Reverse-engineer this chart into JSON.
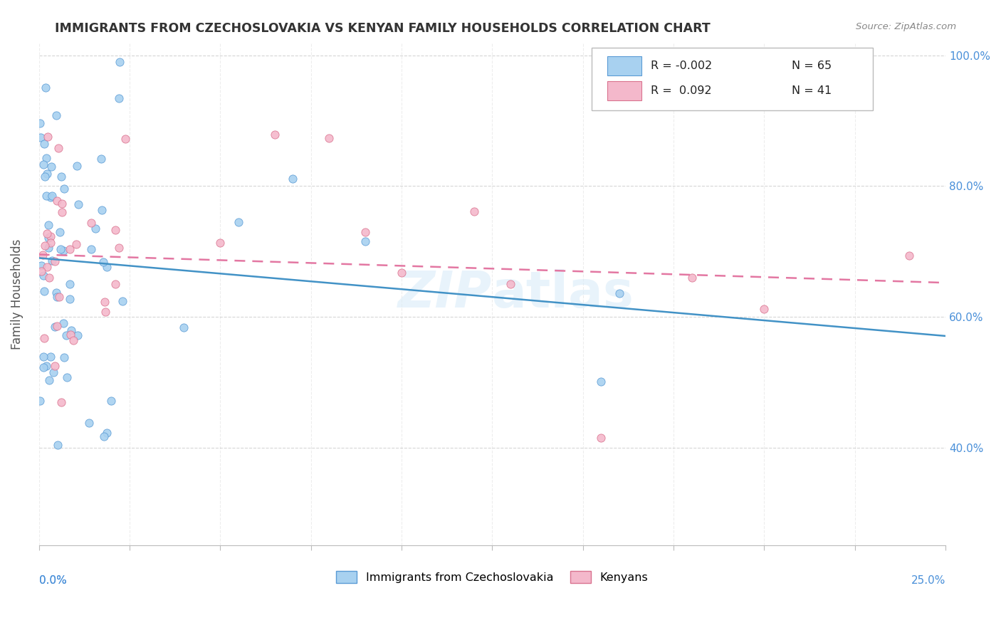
{
  "title": "IMMIGRANTS FROM CZECHOSLOVAKIA VS KENYAN FAMILY HOUSEHOLDS CORRELATION CHART",
  "source": "Source: ZipAtlas.com",
  "ylabel": "Family Households",
  "blue_color_face": "#a8d1f0",
  "blue_color_edge": "#5b9bd5",
  "pink_color_face": "#f4b8cb",
  "pink_color_edge": "#d9738f",
  "blue_line_color": "#4292c6",
  "pink_line_color": "#e377a2",
  "blue_r": -0.002,
  "blue_n": 65,
  "pink_r": 0.092,
  "pink_n": 41,
  "xmin": 0.0,
  "xmax": 0.25,
  "ymin": 0.25,
  "ymax": 1.02,
  "right_yticks": [
    0.4,
    0.6,
    0.8,
    1.0
  ],
  "right_yticklabels": [
    "40.0%",
    "60.0%",
    "80.0%",
    "100.0%"
  ],
  "legend_r1": "R = -0.002",
  "legend_n1": "N = 65",
  "legend_r2": "R =  0.092",
  "legend_n2": "N = 41",
  "legend_items": [
    {
      "label": "Immigrants from Czechoslovakia",
      "face": "#a8d1f0",
      "edge": "#5b9bd5"
    },
    {
      "label": "Kenyans",
      "face": "#f4b8cb",
      "edge": "#d9738f"
    }
  ]
}
